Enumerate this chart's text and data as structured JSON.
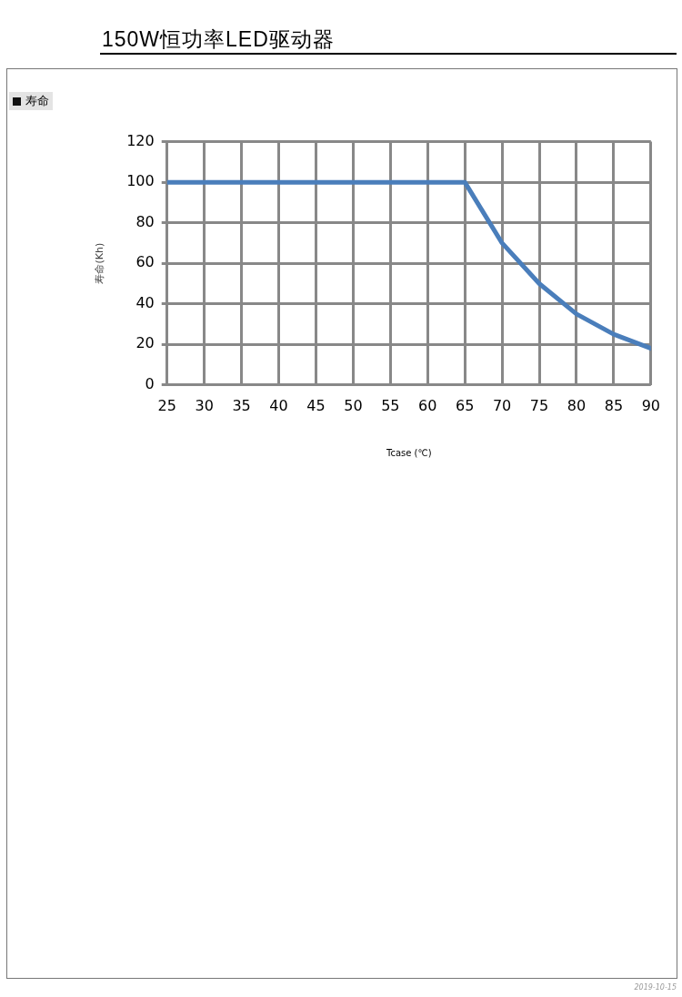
{
  "chart_data": {
    "type": "line",
    "title": "150W恒功率LED驱动器",
    "subtitle": "寿命",
    "xlabel": "Tcase (℃)",
    "ylabel": "寿命(Kh)",
    "x": [
      25,
      30,
      35,
      40,
      45,
      50,
      55,
      60,
      65,
      70,
      75,
      80,
      85,
      90
    ],
    "series": [
      {
        "color": "#4a7ebb",
        "values": [
          100,
          100,
          100,
          100,
          100,
          100,
          100,
          100,
          100,
          70,
          50,
          35,
          25,
          18
        ]
      }
    ],
    "xlim": [
      25,
      90
    ],
    "xticks": [
      25,
      30,
      35,
      40,
      45,
      50,
      55,
      60,
      65,
      70,
      75,
      80,
      85,
      90
    ],
    "ylim": [
      0,
      120
    ],
    "yticks": [
      0,
      20,
      40,
      60,
      80,
      100,
      120
    ],
    "grid": true,
    "marker": "none",
    "line_style": "solid",
    "annotations": [
      "2019-10-15"
    ]
  }
}
